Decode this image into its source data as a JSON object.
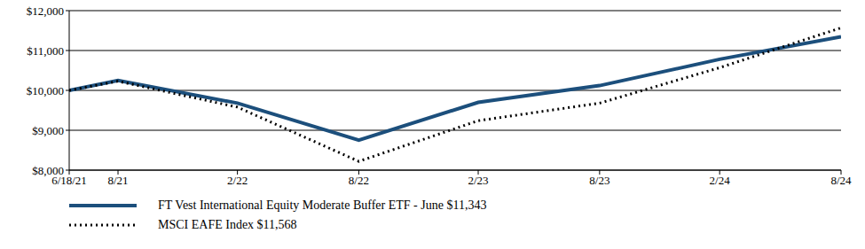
{
  "chart_data": {
    "type": "line",
    "x": [
      "6/18/21",
      "8/21",
      "2/22",
      "8/22",
      "2/23",
      "8/23",
      "2/24",
      "8/24"
    ],
    "xlim": [
      "6/18/21",
      "8/24"
    ],
    "xticks": [
      "6/18/21",
      "8/21",
      "2/22",
      "8/22",
      "2/23",
      "8/23",
      "2/24",
      "8/24"
    ],
    "ylim": [
      8000,
      12000
    ],
    "yticks": [
      {
        "value": 8000,
        "label": "$8,000"
      },
      {
        "value": 9000,
        "label": "$9,000"
      },
      {
        "value": 10000,
        "label": "$10,000"
      },
      {
        "value": 11000,
        "label": "$11,000"
      },
      {
        "value": 12000,
        "label": "$12,000"
      }
    ],
    "grid": true,
    "legend": "bottom-left",
    "series": [
      {
        "name": "FT Vest International Equity Moderate Buffer ETF - June $11,343",
        "color": "#1c4f7c",
        "line_style": "solid",
        "values": [
          10000,
          10250,
          9680,
          8750,
          9700,
          10120,
          10780,
          11343
        ]
      },
      {
        "name": "MSCI EAFE Index $11,568",
        "color": "#000000",
        "line_style": "dotted",
        "values": [
          10000,
          10230,
          9580,
          8220,
          9240,
          9680,
          10570,
          11568
        ]
      }
    ]
  }
}
